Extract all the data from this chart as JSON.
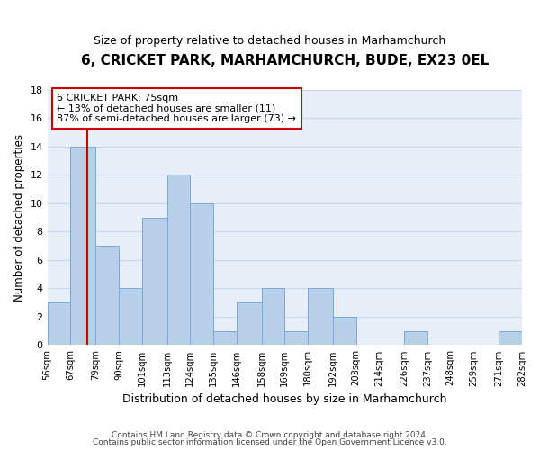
{
  "title": "6, CRICKET PARK, MARHAMCHURCH, BUDE, EX23 0EL",
  "subtitle": "Size of property relative to detached houses in Marhamchurch",
  "xlabel": "Distribution of detached houses by size in Marhamchurch",
  "ylabel": "Number of detached properties",
  "bin_edges": [
    56,
    67,
    79,
    90,
    101,
    113,
    124,
    135,
    146,
    158,
    169,
    180,
    192,
    203,
    214,
    226,
    237,
    248,
    259,
    271,
    282
  ],
  "counts": [
    3,
    14,
    7,
    4,
    9,
    12,
    10,
    1,
    3,
    4,
    1,
    4,
    2,
    0,
    0,
    1,
    0,
    0,
    0,
    1
  ],
  "bar_color": "#b8cfe8",
  "bar_edge_color": "#7aa8d8",
  "reference_line_x": 75,
  "reference_line_color": "#cc0000",
  "annotation_title": "6 CRICKET PARK: 75sqm",
  "annotation_line1": "← 13% of detached houses are smaller (11)",
  "annotation_line2": "87% of semi-detached houses are larger (73) →",
  "annotation_box_color": "#ffffff",
  "annotation_box_edge_color": "#cc0000",
  "ylim": [
    0,
    18
  ],
  "yticks": [
    0,
    2,
    4,
    6,
    8,
    10,
    12,
    14,
    16,
    18
  ],
  "tick_labels": [
    "56sqm",
    "67sqm",
    "79sqm",
    "90sqm",
    "101sqm",
    "113sqm",
    "124sqm",
    "135sqm",
    "146sqm",
    "158sqm",
    "169sqm",
    "180sqm",
    "192sqm",
    "203sqm",
    "214sqm",
    "226sqm",
    "237sqm",
    "248sqm",
    "259sqm",
    "271sqm",
    "282sqm"
  ],
  "footnote1": "Contains HM Land Registry data © Crown copyright and database right 2024.",
  "footnote2": "Contains public sector information licensed under the Open Government Licence v3.0.",
  "background_color": "#ffffff",
  "grid_color": "#c8d8ec",
  "plot_bg_color": "#e8eef8"
}
